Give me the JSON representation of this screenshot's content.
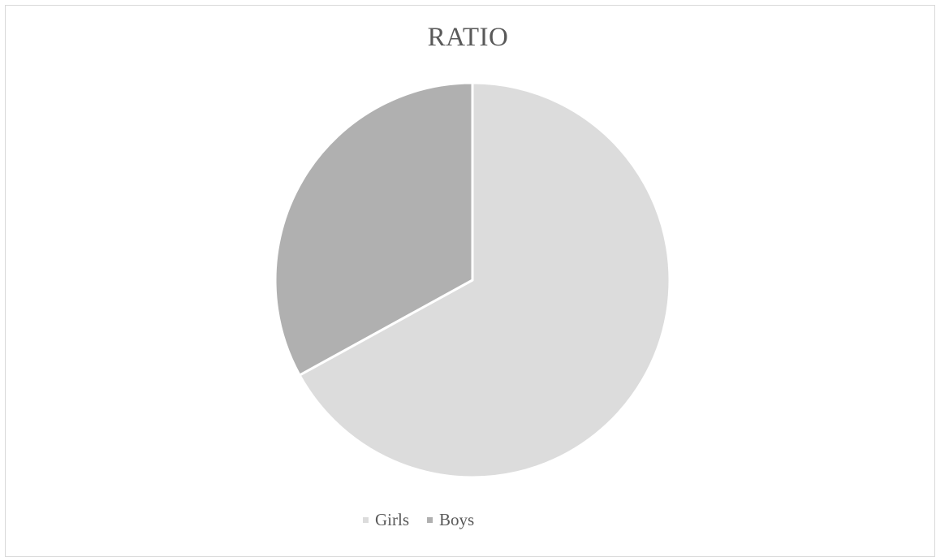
{
  "chart_data": {
    "type": "pie",
    "title": "RATIO",
    "categories": [
      "Girls",
      "Boys"
    ],
    "values": [
      67,
      33
    ],
    "colors": [
      "#dcdcdc",
      "#b0b0b0"
    ],
    "legend_position": "bottom"
  }
}
